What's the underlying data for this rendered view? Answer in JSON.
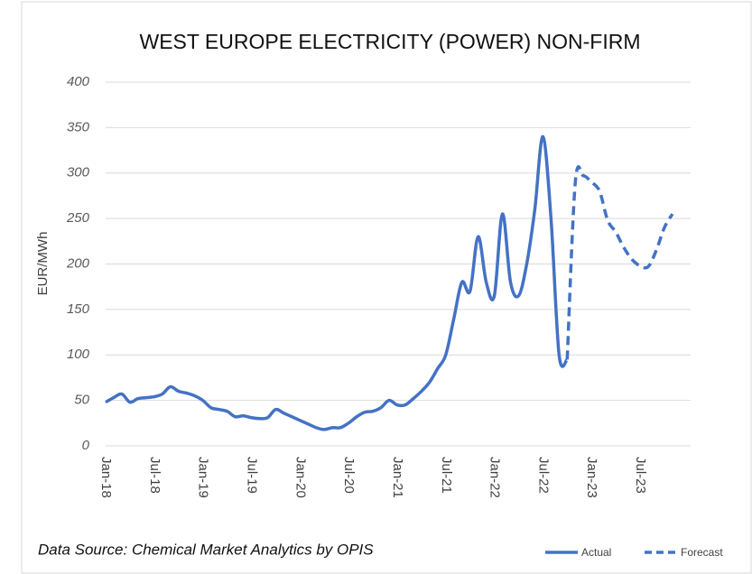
{
  "chart_data": {
    "type": "line",
    "title": "WEST EUROPE ELECTRICITY (POWER) NON-FIRM",
    "y_label": "EUR/MWh",
    "annotation": "Data Source: Chemical Market Analytics by OPIS",
    "categories": [
      "Jan-18",
      null,
      null,
      null,
      null,
      null,
      "Jul-18",
      null,
      null,
      null,
      null,
      null,
      "Jan-19",
      null,
      null,
      null,
      null,
      null,
      "Jul-19",
      null,
      null,
      null,
      null,
      null,
      "Jan-20",
      null,
      null,
      null,
      null,
      null,
      "Jul-20",
      null,
      null,
      null,
      null,
      null,
      "Jan-21",
      null,
      null,
      null,
      null,
      null,
      "Jul-21",
      null,
      null,
      null,
      null,
      null,
      "Jan-22",
      null,
      null,
      null,
      null,
      null,
      "Jul-22",
      null,
      null,
      null,
      null,
      null,
      "Jan-23",
      null,
      null,
      null,
      null,
      null,
      "Jul-23",
      null,
      null,
      null,
      null
    ],
    "series": [
      {
        "name": "Actual",
        "color": "#4472c4",
        "dashed": false,
        "values": [
          48,
          53,
          57,
          48,
          52,
          53,
          54,
          57,
          65,
          60,
          58,
          55,
          50,
          42,
          40,
          38,
          32,
          33,
          31,
          30,
          31,
          40,
          36,
          32,
          28,
          24,
          20,
          18,
          20,
          20,
          25,
          32,
          37,
          38,
          42,
          50,
          45,
          45,
          52,
          60,
          70,
          85,
          100,
          140,
          180,
          170,
          230,
          180,
          165,
          255,
          180,
          165,
          200,
          260,
          340,
          250,
          100,
          95,
          null,
          null,
          null,
          null,
          null,
          null,
          null,
          null,
          null,
          null,
          null,
          null,
          null
        ]
      },
      {
        "name": "Forecast",
        "color": "#4472c4",
        "dashed": true,
        "values": [
          null,
          null,
          null,
          null,
          null,
          null,
          null,
          null,
          null,
          null,
          null,
          null,
          null,
          null,
          null,
          null,
          null,
          null,
          null,
          null,
          null,
          null,
          null,
          null,
          null,
          null,
          null,
          null,
          null,
          null,
          null,
          null,
          null,
          null,
          null,
          null,
          null,
          null,
          null,
          null,
          null,
          null,
          null,
          null,
          null,
          null,
          null,
          null,
          null,
          null,
          null,
          null,
          null,
          null,
          null,
          null,
          null,
          95,
          290,
          297,
          290,
          280,
          248,
          235,
          218,
          205,
          198,
          197,
          215,
          240,
          255
        ]
      }
    ],
    "ylim": [
      0,
      400
    ],
    "yticks": [
      0,
      50,
      100,
      150,
      200,
      250,
      300,
      350,
      400
    ],
    "grid": true,
    "legend": "bottom-right"
  }
}
